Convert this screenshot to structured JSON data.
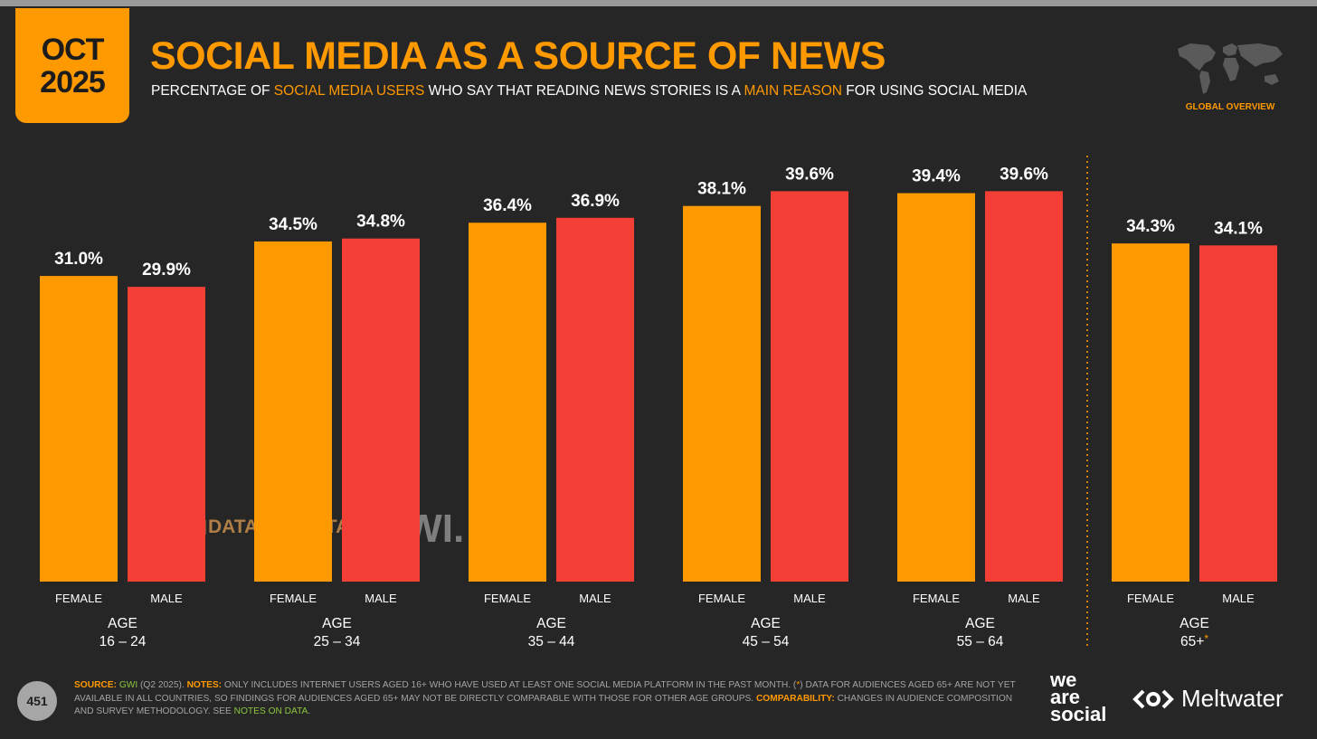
{
  "header": {
    "date_line1": "OCT",
    "date_line2": "2025",
    "title": "SOCIAL MEDIA AS A SOURCE OF NEWS",
    "subtitle_parts": [
      {
        "text": "PERCENTAGE OF ",
        "highlight": false
      },
      {
        "text": "SOCIAL MEDIA USERS",
        "highlight": true
      },
      {
        "text": " WHO SAY THAT READING NEWS STORIES IS A ",
        "highlight": false
      },
      {
        "text": "MAIN REASON",
        "highlight": true
      },
      {
        "text": " FOR USING SOCIAL MEDIA",
        "highlight": false
      }
    ],
    "badge": "GLOBAL OVERVIEW"
  },
  "watermarks": {
    "datareportal": "DATAREPORTAL",
    "gwi": "GWI."
  },
  "chart_data": {
    "type": "bar",
    "value_suffix": "%",
    "ylim": [
      0,
      45
    ],
    "colors": {
      "female": "#ff9900",
      "male": "#f43f36"
    },
    "groups": [
      {
        "group_label_top": "AGE",
        "group_label_bottom": "16 – 24",
        "asterisk": false,
        "bars": [
          {
            "label": "FEMALE",
            "value": 31.0,
            "display": "31.0%"
          },
          {
            "label": "MALE",
            "value": 29.9,
            "display": "29.9%"
          }
        ]
      },
      {
        "group_label_top": "AGE",
        "group_label_bottom": "25 – 34",
        "asterisk": false,
        "bars": [
          {
            "label": "FEMALE",
            "value": 34.5,
            "display": "34.5%"
          },
          {
            "label": "MALE",
            "value": 34.8,
            "display": "34.8%"
          }
        ]
      },
      {
        "group_label_top": "AGE",
        "group_label_bottom": "35 – 44",
        "asterisk": false,
        "bars": [
          {
            "label": "FEMALE",
            "value": 36.4,
            "display": "36.4%"
          },
          {
            "label": "MALE",
            "value": 36.9,
            "display": "36.9%"
          }
        ]
      },
      {
        "group_label_top": "AGE",
        "group_label_bottom": "45 – 54",
        "asterisk": false,
        "bars": [
          {
            "label": "FEMALE",
            "value": 38.1,
            "display": "38.1%"
          },
          {
            "label": "MALE",
            "value": 39.6,
            "display": "39.6%"
          }
        ]
      },
      {
        "group_label_top": "AGE",
        "group_label_bottom": "55 – 64",
        "asterisk": false,
        "bars": [
          {
            "label": "FEMALE",
            "value": 39.4,
            "display": "39.4%"
          },
          {
            "label": "MALE",
            "value": 39.6,
            "display": "39.6%"
          }
        ]
      },
      {
        "group_label_top": "AGE",
        "group_label_bottom": "65+",
        "asterisk": true,
        "bars": [
          {
            "label": "FEMALE",
            "value": 34.3,
            "display": "34.3%"
          },
          {
            "label": "MALE",
            "value": 34.1,
            "display": "34.1%"
          }
        ]
      }
    ],
    "asterisk_symbol": "*"
  },
  "footer": {
    "page_number": "451",
    "source_label": "SOURCE:",
    "source_link": "GWI",
    "source_text": " (Q2 2025). ",
    "notes_label": "NOTES:",
    "notes_text_1": " ONLY INCLUDES INTERNET USERS AGED 16+ WHO HAVE USED AT LEAST ONE SOCIAL MEDIA PLATFORM IN THE PAST MONTH. (",
    "notes_star": "*",
    "notes_text_2": ") DATA FOR AUDIENCES AGED 65+ ARE NOT YET AVAILABLE IN ALL COUNTRIES, SO FINDINGS FOR AUDIENCES AGED 65+ MAY NOT BE DIRECTLY COMPARABLE WITH THOSE FOR OTHER AGE GROUPS. ",
    "comparability_label": "COMPARABILITY:",
    "comparability_text": " CHANGES IN AUDIENCE COMPOSITION AND SURVEY METHODOLOGY. SEE ",
    "notes_link": "NOTES ON DATA",
    "end": ".",
    "brand_we_1": "we",
    "brand_we_2": "are",
    "brand_we_3": "social",
    "brand_meltwater": "Meltwater"
  }
}
